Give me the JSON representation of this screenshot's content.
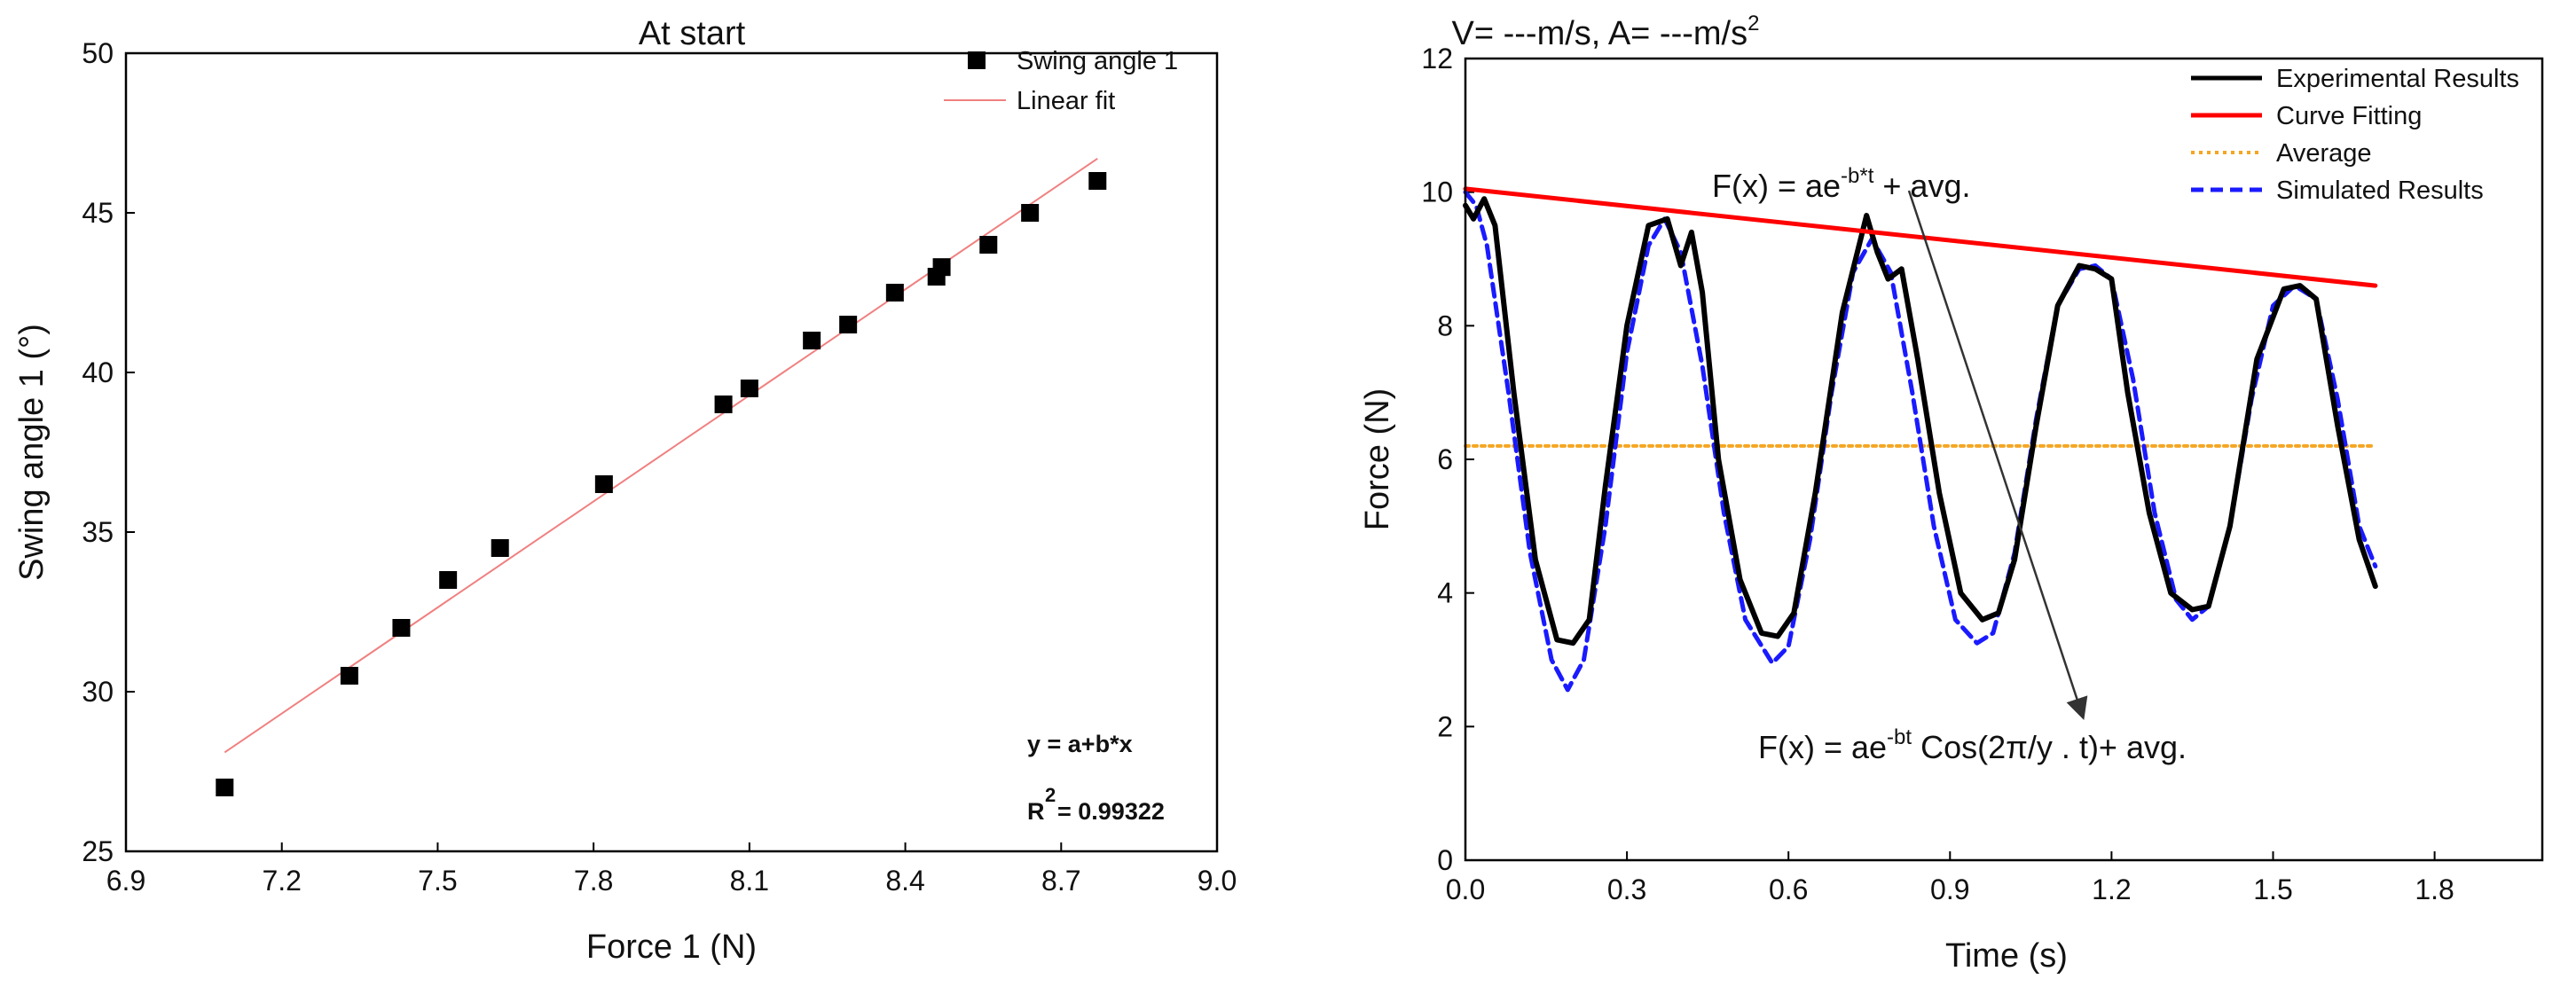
{
  "chart_data": [
    {
      "type": "scatter",
      "title": "At start",
      "xlabel": "Force 1 (N)",
      "ylabel": "Swing angle 1 (°)",
      "xlim": [
        6.9,
        9.0
      ],
      "ylim": [
        25,
        50
      ],
      "xticks": [
        "6.9",
        "7.2",
        "7.5",
        "7.8",
        "8.1",
        "8.4",
        "8.7",
        "9.0"
      ],
      "yticks": [
        "25",
        "30",
        "35",
        "40",
        "45",
        "50"
      ],
      "series": [
        {
          "name": "Swing angle 1",
          "kind": "scatter",
          "color": "#000000",
          "x": [
            7.09,
            7.33,
            7.43,
            7.52,
            7.62,
            7.82,
            8.05,
            8.1,
            8.22,
            8.29,
            8.38,
            8.46,
            8.47,
            8.56,
            8.64,
            8.77
          ],
          "y": [
            27.0,
            30.5,
            32.0,
            33.5,
            34.5,
            36.5,
            39.0,
            39.5,
            41.0,
            41.5,
            42.5,
            43.0,
            43.3,
            44.0,
            45.0,
            46.0
          ]
        },
        {
          "name": "Linear fit",
          "kind": "line",
          "color": "#f08080",
          "x": [
            7.09,
            8.77
          ],
          "y": [
            28.1,
            46.7
          ]
        }
      ],
      "annotations": [
        "y = a+b*x",
        "R",
        "2",
        "= 0.99322"
      ]
    },
    {
      "type": "line",
      "title": "V= ---m/s, A= ---m/s",
      "title_sup": "2",
      "xlabel": "Time (s)",
      "ylabel": "Force (N)",
      "xlim": [
        0.0,
        2.0
      ],
      "ylim": [
        0,
        12
      ],
      "xticks": [
        "0.0",
        "0.3",
        "0.6",
        "0.9",
        "1.2",
        "1.5",
        "1.8"
      ],
      "yticks": [
        "0",
        "2",
        "4",
        "6",
        "8",
        "10",
        "12"
      ],
      "series": [
        {
          "name": "Experimental Results",
          "color": "#000000",
          "x": [
            0.0,
            0.015,
            0.035,
            0.055,
            0.09,
            0.13,
            0.17,
            0.2,
            0.23,
            0.26,
            0.3,
            0.34,
            0.375,
            0.4,
            0.42,
            0.44,
            0.47,
            0.51,
            0.55,
            0.58,
            0.61,
            0.65,
            0.7,
            0.745,
            0.765,
            0.785,
            0.81,
            0.84,
            0.88,
            0.92,
            0.96,
            0.99,
            1.02,
            1.06,
            1.1,
            1.14,
            1.17,
            1.2,
            1.23,
            1.27,
            1.31,
            1.35,
            1.38,
            1.42,
            1.47,
            1.52,
            1.55,
            1.58,
            1.62,
            1.66,
            1.69
          ],
          "y": [
            9.8,
            9.6,
            9.9,
            9.5,
            7.0,
            4.5,
            3.3,
            3.25,
            3.6,
            5.6,
            8.0,
            9.5,
            9.6,
            8.9,
            9.4,
            8.5,
            6.0,
            4.2,
            3.4,
            3.35,
            3.7,
            5.5,
            8.2,
            9.65,
            9.1,
            8.7,
            8.85,
            7.5,
            5.5,
            4.0,
            3.6,
            3.7,
            4.5,
            6.5,
            8.3,
            8.9,
            8.85,
            8.7,
            7.0,
            5.2,
            4.0,
            3.75,
            3.8,
            5.0,
            7.5,
            8.55,
            8.6,
            8.4,
            6.5,
            4.8,
            4.1
          ]
        },
        {
          "name": "Curve Fitting",
          "color": "#ff0000",
          "x": [
            0.0,
            1.69
          ],
          "y": [
            10.05,
            8.6
          ]
        },
        {
          "name": "Average",
          "color": "#f5a623",
          "x": [
            0.0,
            1.69
          ],
          "y": [
            6.2,
            6.2
          ]
        },
        {
          "name": "Simulated Results",
          "color": "#1a1aff",
          "x": [
            0.0,
            0.02,
            0.04,
            0.08,
            0.12,
            0.16,
            0.19,
            0.22,
            0.26,
            0.3,
            0.34,
            0.37,
            0.4,
            0.44,
            0.48,
            0.52,
            0.57,
            0.6,
            0.64,
            0.68,
            0.72,
            0.755,
            0.79,
            0.83,
            0.87,
            0.91,
            0.95,
            0.98,
            1.02,
            1.06,
            1.1,
            1.14,
            1.17,
            1.2,
            1.24,
            1.28,
            1.32,
            1.35,
            1.38,
            1.42,
            1.46,
            1.5,
            1.54,
            1.58,
            1.62,
            1.66,
            1.69
          ],
          "y": [
            10.0,
            9.8,
            9.2,
            7.0,
            4.6,
            3.0,
            2.55,
            3.0,
            5.0,
            7.6,
            9.2,
            9.6,
            9.1,
            7.4,
            5.2,
            3.6,
            2.95,
            3.2,
            4.8,
            7.0,
            8.8,
            9.3,
            8.8,
            7.0,
            5.0,
            3.6,
            3.25,
            3.4,
            4.6,
            6.6,
            8.3,
            8.85,
            8.9,
            8.7,
            7.2,
            5.2,
            3.9,
            3.6,
            3.8,
            5.0,
            6.9,
            8.3,
            8.6,
            8.4,
            6.9,
            5.0,
            4.4
          ]
        }
      ],
      "annotations": [
        {
          "prefix": "F(x) = ae",
          "sup": "-b*t",
          "suffix": " + avg."
        },
        {
          "prefix": "F(x) = ae",
          "sup": "-bt",
          "suffix": "  Cos(2π/y . t)+ avg."
        }
      ]
    }
  ]
}
